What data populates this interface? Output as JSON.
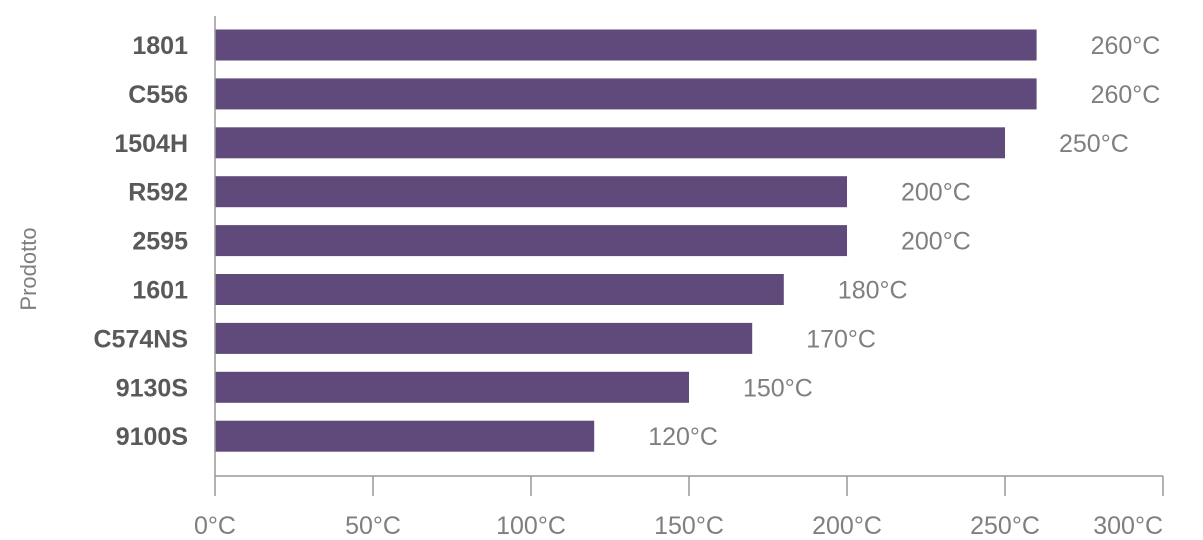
{
  "chart_data": {
    "type": "bar",
    "orientation": "horizontal",
    "ylabel": "Prodotto",
    "xlabel": "",
    "categories": [
      "1801",
      "C556",
      "1504H",
      "R592",
      "2595",
      "1601",
      "C574NS",
      "9130S",
      "9100S"
    ],
    "values": [
      260,
      260,
      250,
      200,
      200,
      180,
      170,
      150,
      120
    ],
    "value_labels": [
      "260°C",
      "260°C",
      "250°C",
      "200°C",
      "200°C",
      "180°C",
      "170°C",
      "150°C",
      "120°C"
    ],
    "xlim": [
      0,
      300
    ],
    "x_ticks": [
      0,
      50,
      100,
      150,
      200,
      250,
      300
    ],
    "x_tick_labels": [
      "0°C",
      "50°C",
      "100°C",
      "150°C",
      "200°C",
      "250°C",
      "300°C"
    ],
    "grid": false,
    "legend": "none",
    "colors": {
      "bar": "#604a7b",
      "axis": "#999999",
      "category_text": "#595959",
      "value_text": "#7f7f7f"
    }
  }
}
